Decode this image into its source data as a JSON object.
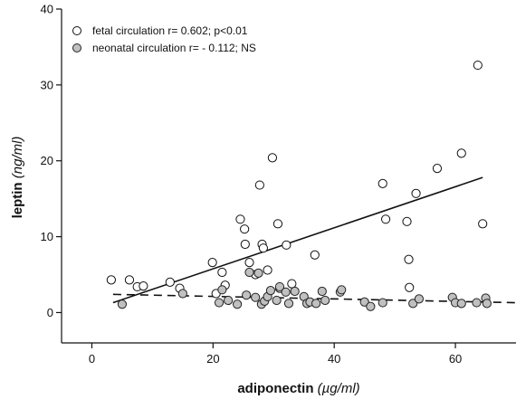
{
  "chart_data": {
    "type": "scatter",
    "xlabel": "adiponectin",
    "xlabel_unit": "(µg/ml)",
    "ylabel": "leptin",
    "ylabel_unit": "(ng/ml)",
    "xlim": [
      -5,
      70
    ],
    "ylim": [
      -4,
      40
    ],
    "xticks": [
      "0",
      "20",
      "40",
      "60"
    ],
    "xtick_values": [
      0,
      20,
      40,
      60
    ],
    "yticks": [
      "0",
      "10",
      "20",
      "30",
      "40"
    ],
    "ytick_values": [
      0,
      10,
      20,
      30,
      40
    ],
    "grid": false,
    "legend_position": "top-left",
    "series": [
      {
        "name": "fetal circulation r= 0.602; p<0.01",
        "marker": "open-circle",
        "color": "#ffffff",
        "edge_color": "#111111",
        "trend_line": {
          "style": "solid",
          "x": [
            3.5,
            64.5
          ],
          "y": [
            1.3,
            17.8
          ]
        },
        "points": [
          [
            3.2,
            4.3
          ],
          [
            6.2,
            4.3
          ],
          [
            7.5,
            3.4
          ],
          [
            8.5,
            3.5
          ],
          [
            12.9,
            4.0
          ],
          [
            14.5,
            3.2
          ],
          [
            19.9,
            6.6
          ],
          [
            20.5,
            2.5
          ],
          [
            21.5,
            5.3
          ],
          [
            22.0,
            3.6
          ],
          [
            24.5,
            12.3
          ],
          [
            25.2,
            11.0
          ],
          [
            25.3,
            9.0
          ],
          [
            26.0,
            6.6
          ],
          [
            27.0,
            5.0
          ],
          [
            27.7,
            16.8
          ],
          [
            28.1,
            9.0
          ],
          [
            28.3,
            8.5
          ],
          [
            29.0,
            5.6
          ],
          [
            29.8,
            20.4
          ],
          [
            30.7,
            11.7
          ],
          [
            31.0,
            3.2
          ],
          [
            32.1,
            8.9
          ],
          [
            33.0,
            3.8
          ],
          [
            36.8,
            7.6
          ],
          [
            48.0,
            17.0
          ],
          [
            48.5,
            12.3
          ],
          [
            52.0,
            12.0
          ],
          [
            52.3,
            7.0
          ],
          [
            52.4,
            3.3
          ],
          [
            53.5,
            15.7
          ],
          [
            57.0,
            19.0
          ],
          [
            61.0,
            21.0
          ],
          [
            63.7,
            32.6
          ],
          [
            64.5,
            11.7
          ]
        ]
      },
      {
        "name": "neonatal circulation r= - 0.112; NS",
        "marker": "filled-circle",
        "color": "#c0c0c0",
        "edge_color": "#222222",
        "trend_line": {
          "style": "dashed",
          "x": [
            3.5,
            70
          ],
          "y": [
            2.4,
            1.3
          ]
        },
        "points": [
          [
            5.0,
            1.1
          ],
          [
            15.0,
            2.5
          ],
          [
            21.0,
            1.3
          ],
          [
            21.5,
            3.0
          ],
          [
            22.5,
            1.6
          ],
          [
            24.0,
            1.1
          ],
          [
            25.5,
            2.3
          ],
          [
            26.0,
            5.3
          ],
          [
            27.0,
            2.0
          ],
          [
            27.5,
            5.2
          ],
          [
            28.0,
            1.1
          ],
          [
            28.5,
            1.5
          ],
          [
            29.0,
            2.1
          ],
          [
            29.5,
            2.9
          ],
          [
            30.5,
            1.6
          ],
          [
            31.0,
            3.4
          ],
          [
            32.0,
            2.7
          ],
          [
            32.5,
            1.2
          ],
          [
            33.5,
            2.8
          ],
          [
            35.0,
            2.1
          ],
          [
            35.5,
            1.2
          ],
          [
            36.0,
            1.4
          ],
          [
            37.0,
            1.2
          ],
          [
            38.0,
            2.8
          ],
          [
            38.5,
            1.6
          ],
          [
            41.0,
            2.7
          ],
          [
            41.2,
            3.0
          ],
          [
            45.0,
            1.4
          ],
          [
            46.0,
            0.8
          ],
          [
            48.0,
            1.3
          ],
          [
            53.0,
            1.2
          ],
          [
            54.0,
            1.8
          ],
          [
            59.5,
            2.0
          ],
          [
            60.0,
            1.3
          ],
          [
            61.0,
            1.2
          ],
          [
            63.5,
            1.3
          ],
          [
            65.0,
            1.9
          ],
          [
            65.2,
            1.2
          ]
        ]
      }
    ]
  }
}
